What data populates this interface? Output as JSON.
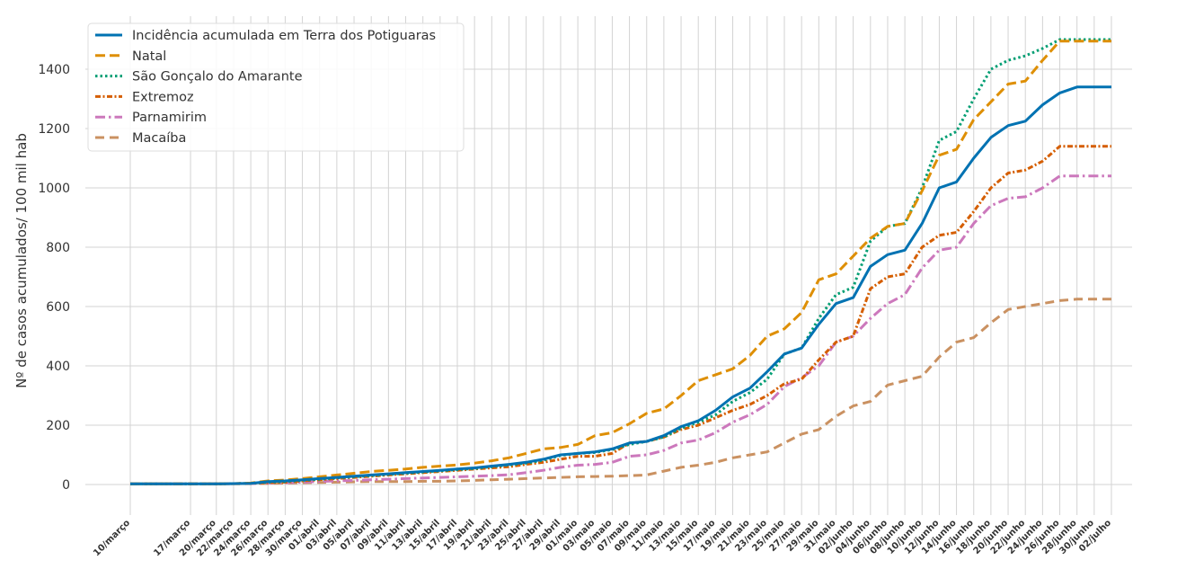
{
  "chart_data": {
    "type": "line",
    "title": "",
    "xlabel": "",
    "ylabel": "Nº de casos acumulados/ 100 mil hab",
    "ylim": [
      -70,
      1580
    ],
    "yticks": [
      0,
      200,
      400,
      600,
      800,
      1000,
      1200,
      1400
    ],
    "grid": true,
    "legend_position": "top-left",
    "x_range": [
      10,
      124
    ],
    "x_tick_positions": [
      10,
      17,
      20,
      22,
      24,
      26,
      28,
      30,
      32,
      34,
      36,
      38,
      40,
      42,
      44,
      46,
      48,
      50,
      52,
      54,
      56,
      58,
      60,
      62,
      64,
      66,
      68,
      70,
      72,
      74,
      76,
      78,
      80,
      82,
      84,
      86,
      88,
      90,
      92,
      94,
      96,
      98,
      100,
      102,
      104,
      106,
      108,
      110,
      112,
      114,
      116,
      118,
      120,
      122,
      124
    ],
    "x_tick_labels": [
      "10/março",
      "17/março",
      "20/março",
      "22/março",
      "24/março",
      "26/março",
      "28/março",
      "30/março",
      "01/abril",
      "03/abril",
      "05/abril",
      "07/abril",
      "09/abril",
      "11/abril",
      "13/abril",
      "15/abril",
      "17/abril",
      "19/abril",
      "21/abril",
      "23/abril",
      "25/abril",
      "27/abril",
      "29/abril",
      "01/maio",
      "03/maio",
      "05/maio",
      "07/maio",
      "09/maio",
      "11/maio",
      "13/maio",
      "15/maio",
      "17/maio",
      "19/maio",
      "21/maio",
      "23/maio",
      "25/maio",
      "27/maio",
      "29/maio",
      "31/maio",
      "02/junho",
      "04/junho",
      "06/junho",
      "08/junho",
      "10/junho",
      "12/junho",
      "14/junho",
      "16/junho",
      "18/junho",
      "20/junho",
      "22/junho",
      "24/junho",
      "26/junho",
      "28/junho",
      "30/junho",
      "02/julho"
    ],
    "series": [
      {
        "name": "Incidência acumulada em Terra dos Potiguaras",
        "color": "#0072b2",
        "style": "solid",
        "x": [
          10,
          17,
          20,
          22,
          24,
          26,
          28,
          30,
          32,
          34,
          36,
          38,
          40,
          42,
          44,
          46,
          48,
          50,
          52,
          54,
          56,
          58,
          60,
          62,
          64,
          66,
          68,
          70,
          72,
          74,
          76,
          78,
          80,
          82,
          84,
          86,
          88,
          90,
          92,
          94,
          96,
          98,
          100,
          102,
          104,
          106,
          108,
          110,
          112,
          114,
          116,
          118,
          120,
          122,
          124
        ],
        "values": [
          2,
          2,
          2,
          3,
          4,
          10,
          12,
          16,
          20,
          24,
          28,
          32,
          36,
          40,
          44,
          48,
          52,
          56,
          62,
          68,
          75,
          85,
          100,
          105,
          110,
          120,
          140,
          145,
          165,
          195,
          215,
          250,
          295,
          325,
          380,
          440,
          460,
          540,
          610,
          630,
          735,
          775,
          790,
          880,
          1000,
          1020,
          1100,
          1170,
          1210,
          1225,
          1280,
          1320,
          1340,
          1340,
          1340
        ]
      },
      {
        "name": "Natal",
        "color": "#de8f05",
        "style": "dashed",
        "x": [
          10,
          17,
          20,
          22,
          24,
          26,
          28,
          30,
          32,
          34,
          36,
          38,
          40,
          42,
          44,
          46,
          48,
          50,
          52,
          54,
          56,
          58,
          60,
          62,
          64,
          66,
          68,
          70,
          72,
          74,
          76,
          78,
          80,
          82,
          84,
          86,
          88,
          90,
          92,
          94,
          96,
          98,
          100,
          102,
          104,
          106,
          108,
          110,
          112,
          114,
          116,
          118,
          120,
          122,
          124
        ],
        "values": [
          2,
          2,
          2,
          3,
          5,
          12,
          15,
          20,
          26,
          32,
          38,
          44,
          48,
          52,
          58,
          62,
          66,
          72,
          80,
          90,
          105,
          120,
          125,
          135,
          165,
          175,
          205,
          240,
          255,
          300,
          350,
          370,
          390,
          435,
          500,
          525,
          580,
          690,
          710,
          770,
          830,
          870,
          880,
          990,
          1110,
          1130,
          1230,
          1290,
          1350,
          1360,
          1430,
          1495,
          1495,
          1495,
          1495
        ]
      },
      {
        "name": "São Gonçalo do Amarante",
        "color": "#029e73",
        "style": "dotted",
        "x": [
          10,
          17,
          20,
          22,
          24,
          26,
          28,
          30,
          32,
          34,
          36,
          38,
          40,
          42,
          44,
          46,
          48,
          50,
          52,
          54,
          56,
          58,
          60,
          62,
          64,
          66,
          68,
          70,
          72,
          74,
          76,
          78,
          80,
          82,
          84,
          86,
          88,
          90,
          92,
          94,
          96,
          98,
          100,
          102,
          104,
          106,
          108,
          110,
          112,
          114,
          116,
          118,
          120,
          122,
          124
        ],
        "values": [
          2,
          2,
          2,
          3,
          4,
          8,
          10,
          14,
          18,
          22,
          26,
          30,
          34,
          38,
          42,
          46,
          50,
          54,
          60,
          66,
          72,
          82,
          98,
          105,
          108,
          118,
          135,
          145,
          160,
          190,
          210,
          235,
          280,
          310,
          355,
          440,
          460,
          560,
          640,
          665,
          820,
          870,
          880,
          1000,
          1160,
          1190,
          1300,
          1400,
          1430,
          1445,
          1470,
          1500,
          1500,
          1500,
          1500
        ]
      },
      {
        "name": "Extremoz",
        "color": "#d55e00",
        "style": "dashdot-dense",
        "x": [
          10,
          17,
          20,
          22,
          24,
          26,
          28,
          30,
          32,
          34,
          36,
          38,
          40,
          42,
          44,
          46,
          48,
          50,
          52,
          54,
          56,
          58,
          60,
          62,
          64,
          66,
          68,
          70,
          72,
          74,
          76,
          78,
          80,
          82,
          84,
          86,
          88,
          90,
          92,
          94,
          96,
          98,
          100,
          102,
          104,
          106,
          108,
          110,
          112,
          114,
          116,
          118,
          120,
          122,
          124
        ],
        "values": [
          2,
          2,
          2,
          3,
          4,
          6,
          8,
          12,
          16,
          20,
          24,
          28,
          32,
          36,
          40,
          44,
          48,
          52,
          56,
          60,
          68,
          75,
          85,
          95,
          95,
          105,
          140,
          145,
          160,
          185,
          200,
          225,
          250,
          270,
          300,
          340,
          355,
          420,
          480,
          500,
          660,
          700,
          710,
          800,
          840,
          850,
          920,
          1000,
          1050,
          1060,
          1090,
          1140,
          1140,
          1140,
          1140
        ]
      },
      {
        "name": "Parnamirim",
        "color": "#cc78bc",
        "style": "dashdot",
        "x": [
          10,
          17,
          20,
          22,
          24,
          26,
          28,
          30,
          32,
          34,
          36,
          38,
          40,
          42,
          44,
          46,
          48,
          50,
          52,
          54,
          56,
          58,
          60,
          62,
          64,
          66,
          68,
          70,
          72,
          74,
          76,
          78,
          80,
          82,
          84,
          86,
          88,
          90,
          92,
          94,
          96,
          98,
          100,
          102,
          104,
          106,
          108,
          110,
          112,
          114,
          116,
          118,
          120,
          122,
          124
        ],
        "values": [
          2,
          2,
          2,
          3,
          3,
          5,
          6,
          8,
          10,
          12,
          14,
          16,
          18,
          20,
          22,
          24,
          26,
          28,
          30,
          33,
          40,
          48,
          58,
          65,
          68,
          75,
          95,
          100,
          115,
          140,
          150,
          175,
          210,
          235,
          270,
          330,
          360,
          400,
          480,
          500,
          560,
          610,
          640,
          730,
          790,
          800,
          880,
          940,
          965,
          970,
          1000,
          1040,
          1040,
          1040,
          1040
        ]
      },
      {
        "name": "Macaíba",
        "color": "#ca9161",
        "style": "dashed-long",
        "x": [
          10,
          17,
          20,
          22,
          24,
          26,
          28,
          30,
          32,
          34,
          36,
          38,
          40,
          42,
          44,
          46,
          48,
          50,
          52,
          54,
          56,
          58,
          60,
          62,
          64,
          66,
          68,
          70,
          72,
          74,
          76,
          78,
          80,
          82,
          84,
          86,
          88,
          90,
          92,
          94,
          96,
          98,
          100,
          102,
          104,
          106,
          108,
          110,
          112,
          114,
          116,
          118,
          120,
          122,
          124
        ],
        "values": [
          2,
          2,
          2,
          2,
          3,
          4,
          5,
          6,
          7,
          8,
          9,
          10,
          10,
          10,
          11,
          11,
          12,
          14,
          16,
          18,
          20,
          22,
          24,
          26,
          27,
          28,
          30,
          32,
          45,
          58,
          65,
          75,
          90,
          100,
          110,
          140,
          170,
          185,
          230,
          265,
          280,
          335,
          350,
          365,
          430,
          480,
          495,
          545,
          590,
          600,
          610,
          620,
          625,
          625,
          625
        ]
      }
    ]
  }
}
